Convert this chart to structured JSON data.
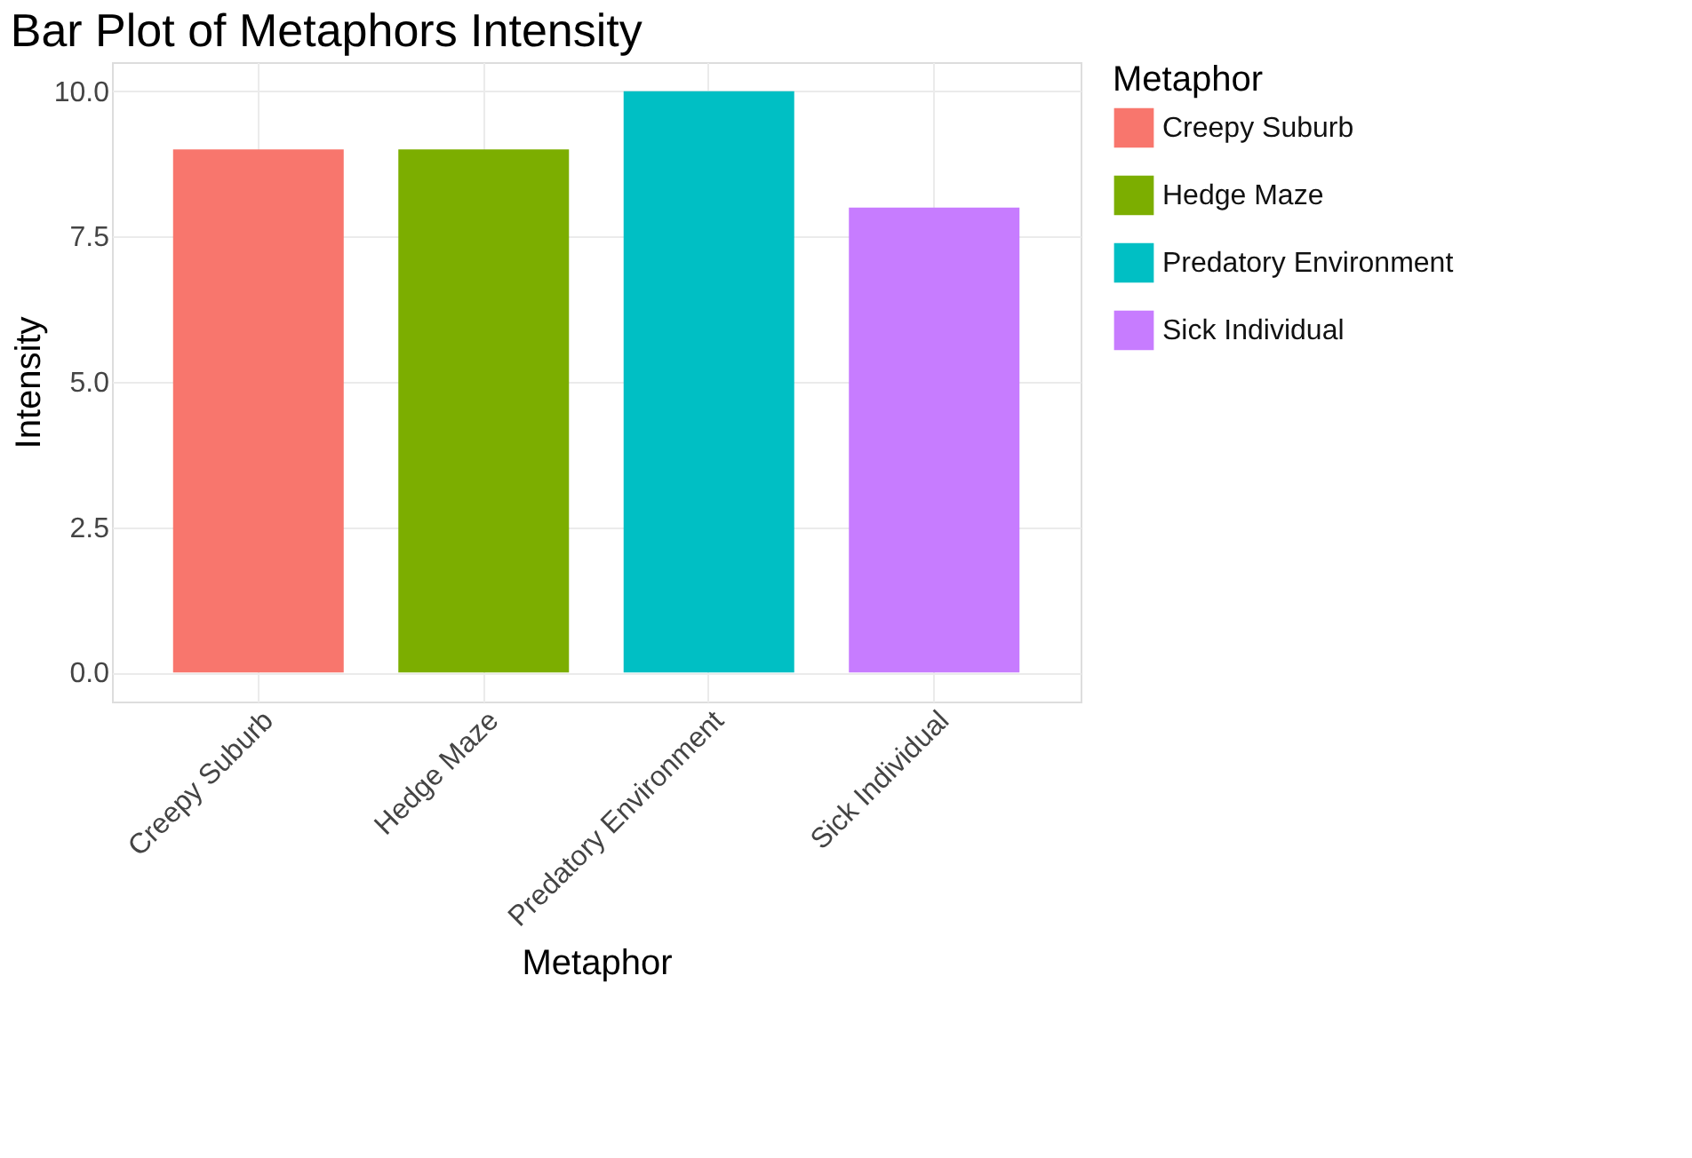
{
  "chart_data": {
    "type": "bar",
    "title": "Bar Plot of Metaphors Intensity",
    "xlabel": "Metaphor",
    "ylabel": "Intensity",
    "legend_title": "Metaphor",
    "categories": [
      "Creepy Suburb",
      "Hedge Maze",
      "Predatory Environment",
      "Sick Individual"
    ],
    "series": [
      {
        "name": "Creepy Suburb",
        "color": "#f8766d",
        "values": [
          9,
          null,
          null,
          null
        ]
      },
      {
        "name": "Hedge Maze",
        "color": "#7cae00",
        "values": [
          null,
          9,
          null,
          null
        ]
      },
      {
        "name": "Predatory Environment",
        "color": "#00bfc4",
        "values": [
          null,
          null,
          10,
          null
        ]
      },
      {
        "name": "Sick Individual",
        "color": "#c77cff",
        "values": [
          null,
          null,
          null,
          8
        ]
      }
    ],
    "ylim": [
      -0.5,
      10.5
    ],
    "yticks": [
      {
        "value": 0,
        "label": "0.0"
      },
      {
        "value": 2.5,
        "label": "2.5"
      },
      {
        "value": 5,
        "label": "5.0"
      },
      {
        "value": 7.5,
        "label": "7.5"
      },
      {
        "value": 10,
        "label": "10.0"
      }
    ],
    "grid": true,
    "legend": "right"
  }
}
